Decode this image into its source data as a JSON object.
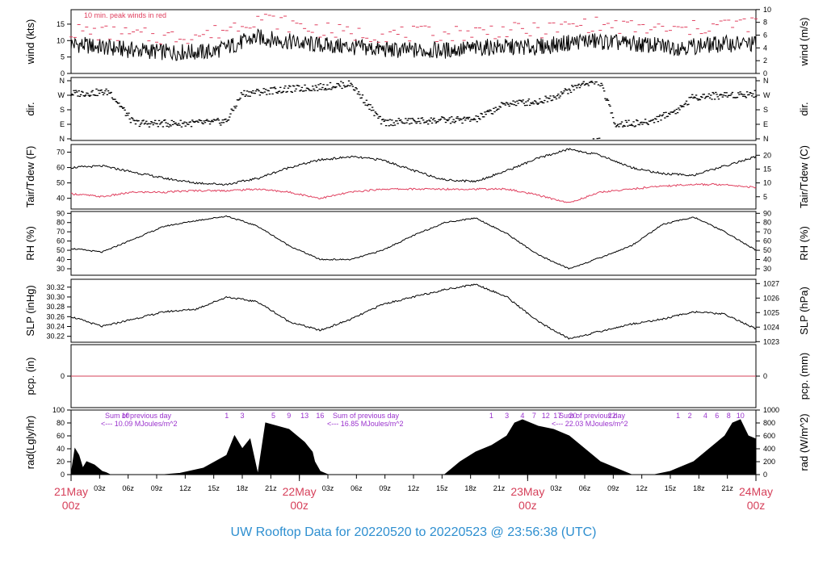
{
  "footer_title": "UW Rooftop Data for 20220520  to  20220523 @ 23:56:38  (UTC)",
  "wind_note": "10 min. peak winds in red",
  "colors": {
    "series": "#000000",
    "accent": "#e0405f",
    "note": "#9a32cd",
    "footer": "#2e8fd0",
    "zero_line": "#d6405a"
  },
  "x_axis": {
    "hour_ticks": [
      "03z",
      "06z",
      "09z",
      "12z",
      "15z",
      "18z",
      "21z",
      "22May",
      "03z",
      "06z",
      "09z",
      "12z",
      "15z",
      "18z",
      "21z",
      "23May",
      "03z",
      "06z",
      "09z",
      "12z",
      "15z",
      "18z",
      "21z",
      "24May"
    ],
    "day_labels": [
      {
        "top": "21May",
        "bottom": "00z"
      },
      {
        "top": "22May",
        "bottom": "00z"
      },
      {
        "top": "23May",
        "bottom": "00z"
      },
      {
        "top": "24May",
        "bottom": "00z"
      }
    ]
  },
  "radiation_notes": [
    {
      "text": "Sum of previous day",
      "energy": "<--- 10.09 MJoules/m^2"
    },
    {
      "text": "Sum of previous day",
      "energy": "<--- 16.85 MJoules/m^2"
    },
    {
      "text": "Sum of previous day",
      "energy": "<--- 22.03 MJoules/m^2"
    }
  ],
  "hour_marks": [
    {
      "hour": 7,
      "label": "10"
    },
    {
      "hour": 20,
      "label": "1"
    },
    {
      "hour": 22,
      "label": "3"
    },
    {
      "hour": 26,
      "label": "5"
    },
    {
      "hour": 28,
      "label": "9"
    },
    {
      "hour": 30,
      "label": "13"
    },
    {
      "hour": 32,
      "label": "16"
    },
    {
      "hour": 54,
      "label": "1"
    },
    {
      "hour": 56,
      "label": "3"
    },
    {
      "hour": 58,
      "label": "4"
    },
    {
      "hour": 59.5,
      "label": "7"
    },
    {
      "hour": 61,
      "label": "12"
    },
    {
      "hour": 62.5,
      "label": "17"
    },
    {
      "hour": 64.5,
      "label": "20"
    },
    {
      "hour": 69.5,
      "label": "22"
    },
    {
      "hour": 78,
      "label": "1"
    },
    {
      "hour": 79.5,
      "label": "2"
    },
    {
      "hour": 81.5,
      "label": "4"
    },
    {
      "hour": 83,
      "label": "6"
    },
    {
      "hour": 84.5,
      "label": "8"
    },
    {
      "hour": 86,
      "label": "10"
    }
  ],
  "chart_data": [
    {
      "type": "line",
      "id": "wind",
      "ylabel_left": "wind (kts)",
      "ylabel_right": "wind (m/s)",
      "ylim": [
        0,
        19.4
      ],
      "left_ticks": [
        "0",
        "5",
        "10",
        "15"
      ],
      "right_ticks": [
        "0",
        "2",
        "4",
        "6",
        "8",
        "10"
      ],
      "series": [
        {
          "name": "",
          "x_hours": [
            0,
            6,
            12,
            18,
            24,
            30,
            36,
            42,
            48,
            54,
            60,
            66,
            72,
            78,
            84,
            88
          ],
          "values": [
            9,
            7.5,
            6.5,
            6.5,
            11,
            9,
            8,
            7,
            7,
            8,
            8,
            10,
            9,
            8,
            9,
            9
          ]
        },
        {
          "name": "10 min. peak winds",
          "x_hours": [
            0,
            6,
            12,
            18,
            24,
            30,
            36,
            42,
            48,
            54,
            60,
            66,
            72,
            78,
            84,
            88
          ],
          "values": [
            13,
            12,
            11,
            12,
            17,
            14,
            12,
            12,
            12,
            13,
            13,
            15,
            14,
            13,
            15,
            15
          ]
        }
      ]
    },
    {
      "type": "scatter",
      "id": "dir",
      "ylabel_left": "dir.",
      "ylabel_right": "dir.",
      "categories": [
        "N",
        "E",
        "S",
        "W",
        "N"
      ],
      "left_ticks": [
        "N",
        "E",
        "S",
        "W",
        "N"
      ],
      "right_ticks": [
        "N",
        "E",
        "S",
        "W",
        "N"
      ],
      "series": [
        {
          "name": "",
          "x_hours": [
            0,
            5,
            8,
            10,
            14,
            18,
            20,
            22,
            26,
            32,
            36,
            40,
            44,
            48,
            52,
            56,
            60,
            62,
            66,
            68,
            70,
            74,
            78,
            80,
            84,
            88
          ],
          "values": [
            280,
            290,
            100,
            95,
            95,
            100,
            110,
            280,
            300,
            320,
            340,
            100,
            110,
            115,
            120,
            220,
            230,
            260,
            345,
            350,
            90,
            100,
            180,
            260,
            270,
            280
          ]
        }
      ]
    },
    {
      "type": "line",
      "id": "temp",
      "ylabel_left": "Tair/Tdew (F)",
      "ylabel_right": "Tair/Tdew (C)",
      "ylim": [
        33,
        75
      ],
      "left_ticks": [
        "40",
        "50",
        "60",
        "70"
      ],
      "right_ticks": [
        "5",
        "10",
        "15",
        "20"
      ],
      "series": [
        {
          "name": "",
          "x_hours": [
            0,
            4,
            8,
            12,
            16,
            20,
            24,
            28,
            32,
            36,
            40,
            44,
            48,
            52,
            56,
            60,
            64,
            68,
            72,
            76,
            80,
            84,
            88
          ],
          "values": [
            60,
            61,
            57,
            53,
            50,
            49,
            53,
            60,
            65,
            67,
            65,
            58,
            52,
            51,
            58,
            66,
            72,
            68,
            60,
            56,
            55,
            61,
            67
          ]
        },
        {
          "name": "",
          "x_hours": [
            0,
            4,
            8,
            12,
            16,
            20,
            24,
            28,
            32,
            36,
            40,
            44,
            48,
            52,
            56,
            60,
            64,
            68,
            72,
            76,
            80,
            84,
            88
          ],
          "values": [
            43,
            41,
            44,
            44,
            45,
            45,
            46,
            44,
            40,
            44,
            46,
            46,
            46,
            46,
            46,
            42,
            37,
            44,
            46,
            48,
            49,
            49,
            47
          ]
        }
      ]
    },
    {
      "type": "line",
      "id": "rh",
      "ylabel_left": "RH (%)",
      "ylabel_right": "RH (%)",
      "ylim": [
        23,
        92
      ],
      "left_ticks": [
        "30",
        "40",
        "50",
        "60",
        "70",
        "80",
        "90"
      ],
      "right_ticks": [
        "30",
        "40",
        "50",
        "60",
        "70",
        "80",
        "90"
      ],
      "series": [
        {
          "name": "",
          "x_hours": [
            0,
            4,
            8,
            12,
            16,
            20,
            24,
            28,
            32,
            36,
            40,
            44,
            48,
            52,
            56,
            60,
            64,
            68,
            72,
            76,
            80,
            84,
            88
          ],
          "values": [
            52,
            48,
            62,
            76,
            82,
            87,
            76,
            55,
            40,
            40,
            50,
            66,
            80,
            85,
            68,
            45,
            30,
            42,
            55,
            78,
            86,
            70,
            50
          ]
        }
      ]
    },
    {
      "type": "line",
      "id": "slp",
      "ylabel_left": "SLP (inHg)",
      "ylabel_right": "SLP (hPa)",
      "ylim": [
        30.208,
        30.336
      ],
      "left_ticks": [
        "30.22",
        "30.24",
        "30.26",
        "30.28",
        "30.30",
        "30.32"
      ],
      "right_ticks": [
        "1023",
        "1024",
        "1025",
        "1026",
        "1027"
      ],
      "series": [
        {
          "name": "",
          "x_hours": [
            0,
            4,
            8,
            12,
            16,
            20,
            24,
            28,
            32,
            36,
            40,
            44,
            48,
            52,
            56,
            60,
            64,
            68,
            72,
            76,
            80,
            84,
            88
          ],
          "values": [
            30.26,
            30.24,
            30.255,
            30.27,
            30.275,
            30.3,
            30.29,
            30.25,
            30.232,
            30.255,
            30.285,
            30.3,
            30.315,
            30.326,
            30.3,
            30.25,
            30.215,
            30.23,
            30.245,
            30.255,
            30.27,
            30.265,
            30.235
          ]
        }
      ]
    },
    {
      "type": "line",
      "id": "pcp",
      "ylabel_left": "pcp. (in)",
      "ylabel_right": "pcp. (mm)",
      "ylim": [
        -1,
        1
      ],
      "left_ticks": [
        "0"
      ],
      "right_ticks": [
        "0"
      ],
      "series": [
        {
          "name": "",
          "x_hours": [
            0,
            88
          ],
          "values": [
            0,
            0
          ]
        }
      ]
    },
    {
      "type": "area",
      "id": "rad",
      "ylabel_left": "rad(Lgly/hr)",
      "ylabel_right": "rad (W/m^2)",
      "ylim": [
        0,
        100
      ],
      "left_ticks": [
        "0",
        "20",
        "40",
        "60",
        "80",
        "100"
      ],
      "right_ticks": [
        "0",
        "200",
        "400",
        "600",
        "800",
        "1000"
      ],
      "series": [
        {
          "name": "",
          "x_hours": [
            0,
            0.5,
            1,
            1.5,
            2,
            3,
            4,
            4.5,
            5,
            12,
            14,
            17,
            20,
            21,
            22,
            23,
            24,
            25,
            28,
            30,
            31,
            31.3,
            32,
            33,
            38,
            44,
            46,
            48,
            49,
            50,
            52,
            54,
            56,
            57,
            58,
            60,
            62,
            64,
            66,
            68,
            70,
            72,
            75,
            77,
            78,
            80,
            82,
            84,
            85,
            86,
            87,
            88
          ],
          "values": [
            0,
            40,
            30,
            10,
            20,
            15,
            5,
            3,
            0,
            0,
            2,
            10,
            30,
            60,
            40,
            55,
            0,
            80,
            70,
            50,
            35,
            20,
            5,
            0,
            0,
            0,
            0,
            0,
            10,
            20,
            35,
            45,
            60,
            80,
            85,
            75,
            70,
            60,
            40,
            20,
            10,
            0,
            0,
            5,
            10,
            20,
            40,
            60,
            80,
            85,
            60,
            55
          ]
        }
      ]
    }
  ]
}
